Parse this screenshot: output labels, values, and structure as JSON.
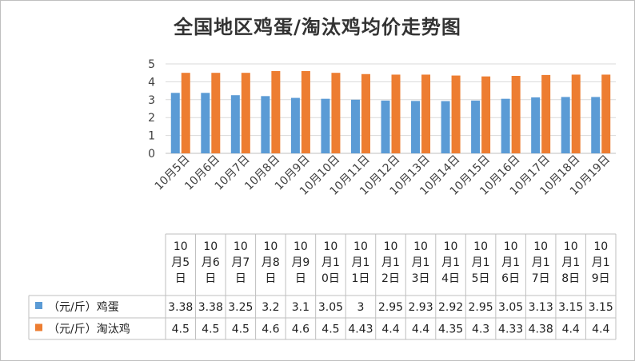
{
  "chart_data": {
    "type": "bar",
    "title": "全国地区鸡蛋/淘汰鸡均价走势图",
    "categories": [
      "10月5日",
      "10月6日",
      "10月7日",
      "10月8日",
      "10月9日",
      "10月10日",
      "10月11日",
      "10月12日",
      "10月13日",
      "10月14日",
      "10月15日",
      "10月16日",
      "10月17日",
      "10月18日",
      "10月19日"
    ],
    "table_headers": [
      "10\n月5\n日",
      "10\n月6\n日",
      "10\n月7\n日",
      "10\n月8\n日",
      "10\n月9\n日",
      "10\n月1\n0日",
      "10\n月1\n1日",
      "10\n月1\n2日",
      "10\n月1\n3日",
      "10\n月1\n4日",
      "10\n月1\n5日",
      "10\n月1\n6日",
      "10\n月1\n7日",
      "10\n月1\n8日",
      "10\n月1\n9日"
    ],
    "series": [
      {
        "name": "（元/斤）鸡蛋",
        "color": "#5B9BD5",
        "values": [
          3.38,
          3.38,
          3.25,
          3.2,
          3.1,
          3.05,
          3,
          2.95,
          2.93,
          2.92,
          2.95,
          3.05,
          3.13,
          3.15,
          3.15
        ]
      },
      {
        "name": "（元/斤）淘汰鸡",
        "color": "#ED7D31",
        "values": [
          4.5,
          4.5,
          4.5,
          4.6,
          4.6,
          4.5,
          4.43,
          4.4,
          4.4,
          4.35,
          4.3,
          4.33,
          4.38,
          4.4,
          4.4
        ]
      }
    ],
    "ylim": [
      0,
      5
    ],
    "yticks": [
      0,
      1,
      2,
      3,
      4,
      5
    ],
    "grid": true,
    "legend": "data-table"
  }
}
